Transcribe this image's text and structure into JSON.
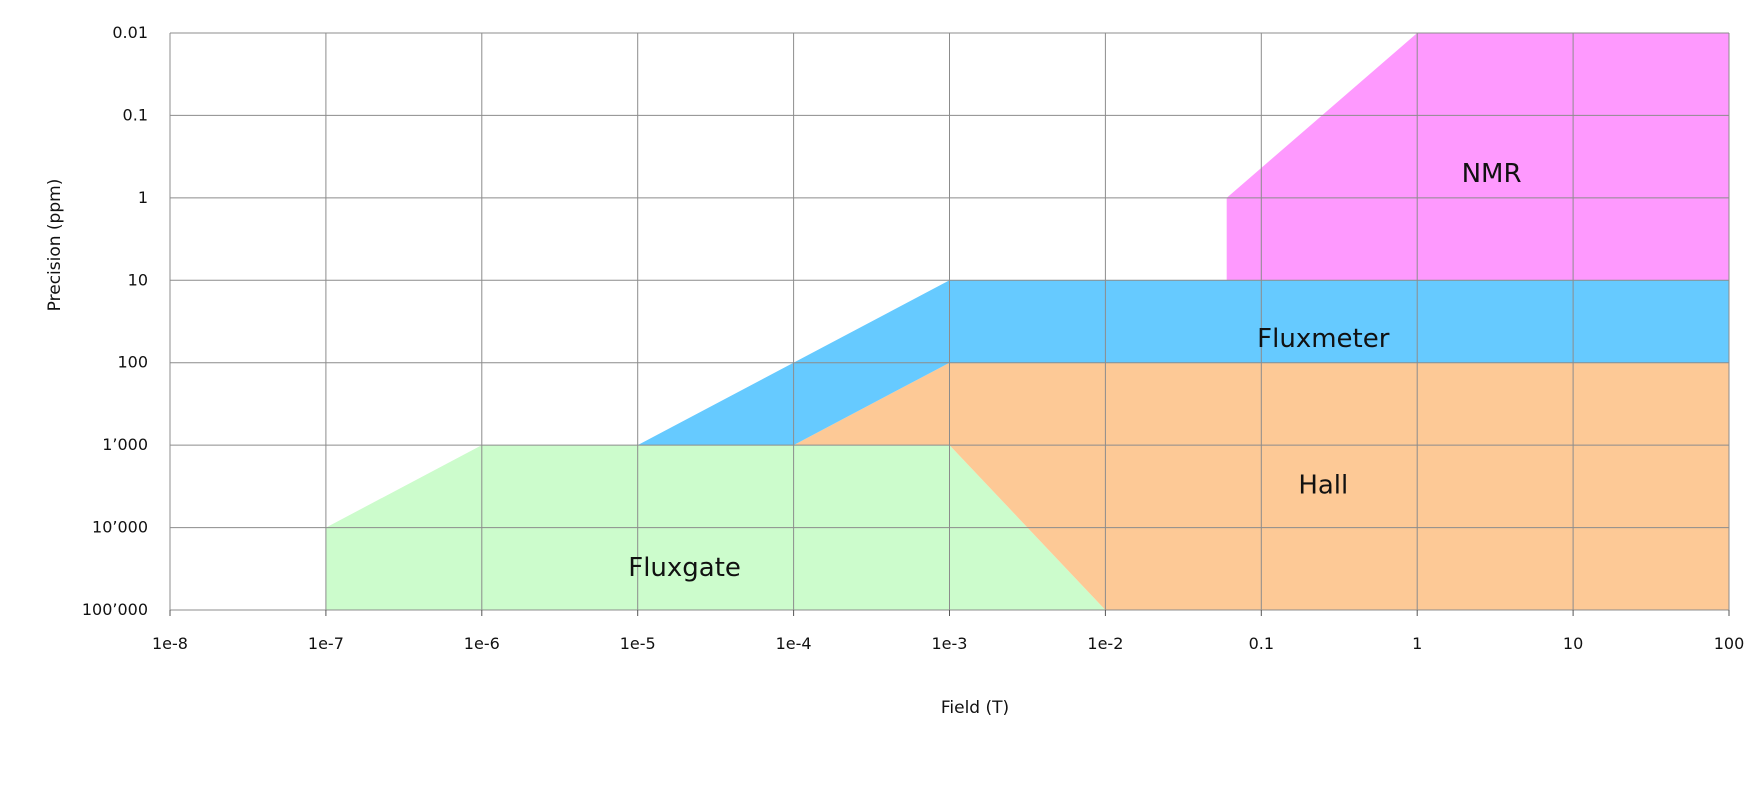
{
  "chart_data": {
    "type": "area",
    "title": "",
    "xlabel": "Field (T)",
    "ylabel": "Precision (ppm)",
    "x_scale": "log",
    "y_scale": "log",
    "y_inverted": true,
    "grid": true,
    "xlim": [
      1e-08,
      100
    ],
    "ylim": [
      0.01,
      100000
    ],
    "x_ticks": [
      {
        "value": 1e-08,
        "label": "1e-8"
      },
      {
        "value": 1e-07,
        "label": "1e-7"
      },
      {
        "value": 1e-06,
        "label": "1e-6"
      },
      {
        "value": 1e-05,
        "label": "1e-5"
      },
      {
        "value": 0.0001,
        "label": "1e-4"
      },
      {
        "value": 0.001,
        "label": "1e-3"
      },
      {
        "value": 0.01,
        "label": "1e-2"
      },
      {
        "value": 0.1,
        "label": "0.1"
      },
      {
        "value": 1,
        "label": "1"
      },
      {
        "value": 10,
        "label": "10"
      },
      {
        "value": 100,
        "label": "100"
      }
    ],
    "y_ticks": [
      {
        "value": 0.01,
        "label": "0.01"
      },
      {
        "value": 0.1,
        "label": "0.1"
      },
      {
        "value": 1,
        "label": "1"
      },
      {
        "value": 10,
        "label": "10"
      },
      {
        "value": 100,
        "label": "100"
      },
      {
        "value": 1000,
        "label": "1’000"
      },
      {
        "value": 10000,
        "label": "10’000"
      },
      {
        "value": 100000,
        "label": "100’000"
      }
    ],
    "series": [
      {
        "name": "Fluxgate",
        "color": "#ccfccc",
        "label_at": [
          2e-05,
          30000
        ],
        "polygon": [
          [
            1e-07,
            100000
          ],
          [
            1e-07,
            10000
          ],
          [
            1e-06,
            1000
          ],
          [
            0.001,
            1000
          ],
          [
            0.01,
            100000
          ]
        ]
      },
      {
        "name": "Hall",
        "color": "#fdc996",
        "label_at": [
          0.25,
          3000
        ],
        "polygon": [
          [
            0.01,
            100000
          ],
          [
            0.001,
            1000
          ],
          [
            0.0001,
            1000
          ],
          [
            0.001,
            100
          ],
          [
            100,
            100
          ],
          [
            100,
            100000
          ]
        ]
      },
      {
        "name": "Fluxmeter",
        "color": "#66caff",
        "label_at": [
          0.25,
          50
        ],
        "polygon": [
          [
            1e-05,
            1000
          ],
          [
            0.001,
            10
          ],
          [
            100,
            10
          ],
          [
            100,
            100
          ],
          [
            0.001,
            100
          ],
          [
            0.0001,
            1000
          ]
        ]
      },
      {
        "name": "NMR",
        "color": "#fe99fe",
        "label_at": [
          3,
          0.5
        ],
        "polygon": [
          [
            0.06,
            10
          ],
          [
            0.06,
            1
          ],
          [
            1,
            0.01
          ],
          [
            100,
            0.01
          ],
          [
            100,
            10
          ]
        ]
      }
    ]
  }
}
